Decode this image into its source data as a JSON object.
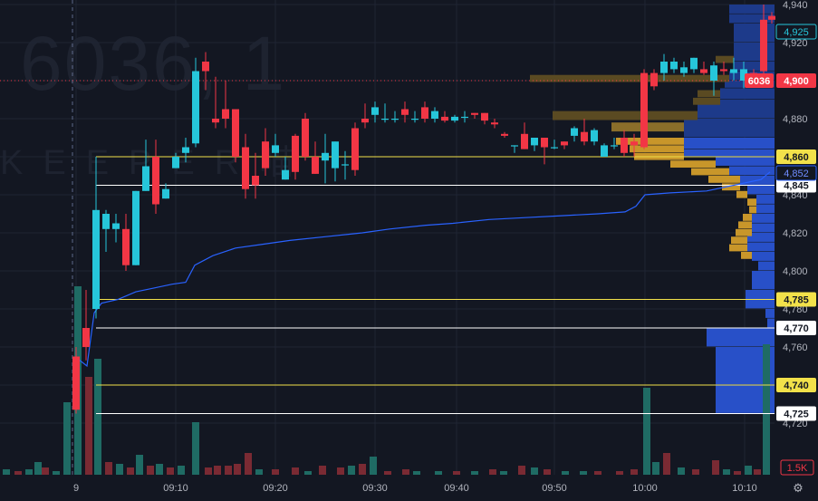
{
  "watermark": {
    "symbol": "6036, 1",
    "brand": "KEEPER喵"
  },
  "chart_data": {
    "type": "candlestick",
    "interval_minutes": 1,
    "y_axis": {
      "range": [
        4715,
        4943
      ],
      "ticks": [
        4720,
        4740,
        4760,
        4780,
        4800,
        4820,
        4840,
        4860,
        4880,
        4900,
        4920,
        4940
      ]
    },
    "x_axis": {
      "ticks": [
        "9",
        "09:10",
        "09:20",
        "09:30",
        "09:40",
        "09:50",
        "10:00",
        "10:10"
      ]
    },
    "grid": true,
    "price_lines": [
      {
        "price": 4860,
        "label": "4,860",
        "color": "#f2e14a"
      },
      {
        "price": 4845,
        "label": "4,845",
        "color": "#ffffff"
      },
      {
        "price": 4785,
        "label": "4,785",
        "color": "#f2e14a"
      },
      {
        "price": 4770,
        "label": "4,770",
        "color": "#ffffff"
      },
      {
        "price": 4740,
        "label": "4,740",
        "color": "#f2e14a"
      },
      {
        "price": 4725,
        "label": "4,725",
        "color": "#ffffff"
      }
    ],
    "current_price": {
      "price": 4900,
      "symbol": "6036",
      "label": "4,900",
      "color": "#f23645"
    },
    "vwap": {
      "label": "4,852",
      "color": "#2962ff"
    },
    "upper_label": "4,925",
    "volume_label": "1.5K",
    "colors": {
      "up": "#26c6da",
      "down": "#f23645",
      "volume_up": "#1f6b64",
      "volume_down": "#7a2a33",
      "profile_blue": "#2850c8",
      "profile_gold": "#c8962a"
    }
  }
}
